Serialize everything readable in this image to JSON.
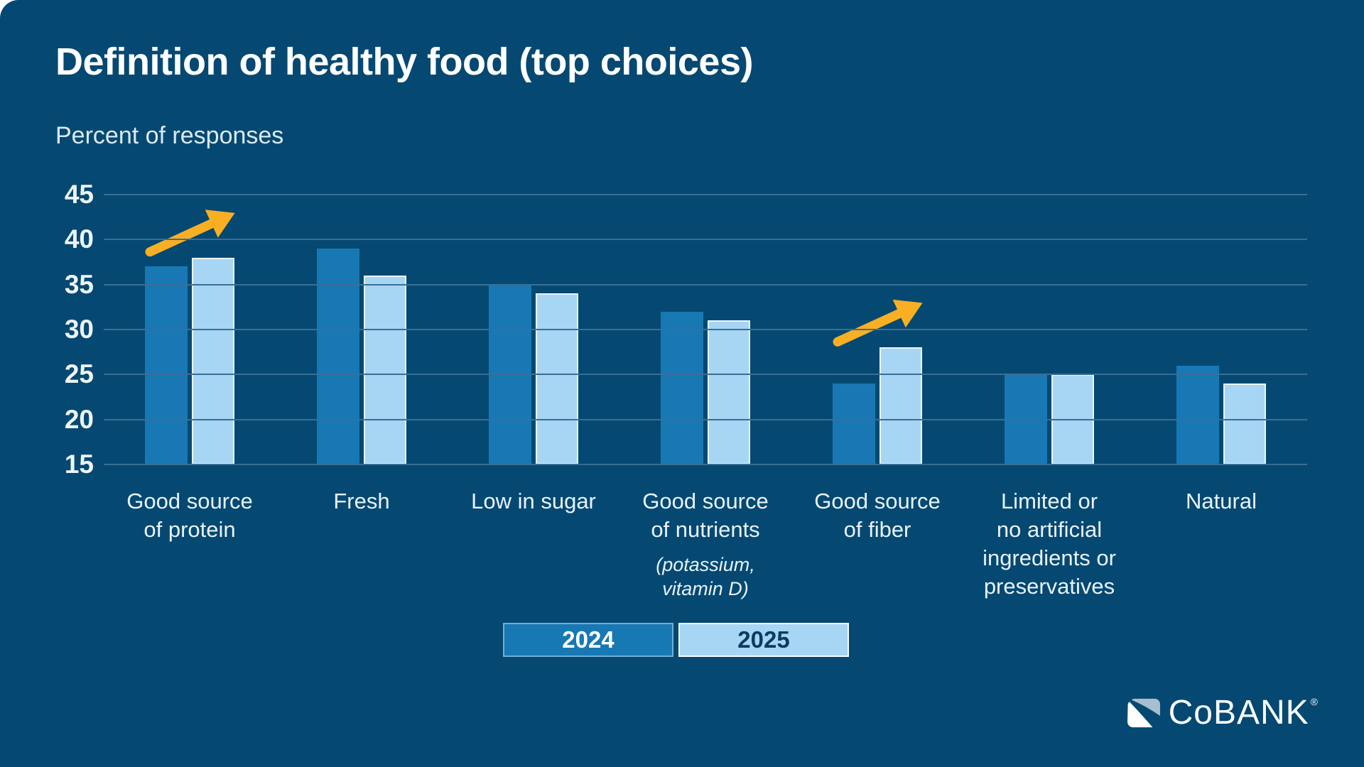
{
  "title": "Definition of healthy food (top choices)",
  "subtitle": "Percent of responses",
  "colors": {
    "background": "#054972",
    "series2024": "#1878B4",
    "series2025": "#A6D6F3",
    "gridline": "#3A6E94",
    "arrow": "#F9AF24",
    "title_text": "#FFFFFF",
    "axis_text": "#EDF4FA",
    "legend_2025_text": "#0A3C60",
    "logo_mark_gray": "#A9BECF"
  },
  "legend": [
    {
      "label": "2024"
    },
    {
      "label": "2025"
    }
  ],
  "logo": {
    "text": "CoBANK",
    "registered": "®"
  },
  "chart_data": {
    "type": "bar",
    "title": "Definition of healthy food (top choices)",
    "ylabel": "Percent of responses",
    "xlabel": "",
    "ylim": [
      15,
      45
    ],
    "yticks": [
      45,
      40,
      35,
      30,
      25,
      20,
      15
    ],
    "grid": true,
    "legend_position": "bottom",
    "categories": [
      {
        "name": "Good source of protein",
        "lines": [
          "Good source",
          "of protein"
        ],
        "note": "",
        "note_lines": []
      },
      {
        "name": "Fresh",
        "lines": [
          "Fresh"
        ],
        "note": "",
        "note_lines": []
      },
      {
        "name": "Low in sugar",
        "lines": [
          "Low in sugar"
        ],
        "note": "",
        "note_lines": []
      },
      {
        "name": "Good source of nutrients",
        "lines": [
          "Good source",
          "of nutrients"
        ],
        "note": "(potassium, vitamin D)",
        "note_lines": [
          "(potassium,",
          "vitamin D)"
        ]
      },
      {
        "name": "Good source of fiber",
        "lines": [
          "Good source",
          "of fiber"
        ],
        "note": "",
        "note_lines": []
      },
      {
        "name": "Limited or no artificial ingredients or preservatives",
        "lines": [
          "Limited or",
          "no artificial",
          "ingredients or",
          "preservatives"
        ],
        "note": "",
        "note_lines": []
      },
      {
        "name": "Natural",
        "lines": [
          "Natural"
        ],
        "note": "",
        "note_lines": []
      }
    ],
    "series": [
      {
        "name": "2024",
        "values": [
          37,
          39,
          35,
          32,
          24,
          25,
          26
        ]
      },
      {
        "name": "2025",
        "values": [
          38,
          36,
          34,
          31,
          28,
          25,
          24
        ]
      }
    ],
    "annotations": [
      {
        "type": "arrow-up",
        "group_index": 0,
        "meaning": "increase 2024 to 2025"
      },
      {
        "type": "arrow-up",
        "group_index": 4,
        "meaning": "increase 2024 to 2025"
      }
    ]
  }
}
